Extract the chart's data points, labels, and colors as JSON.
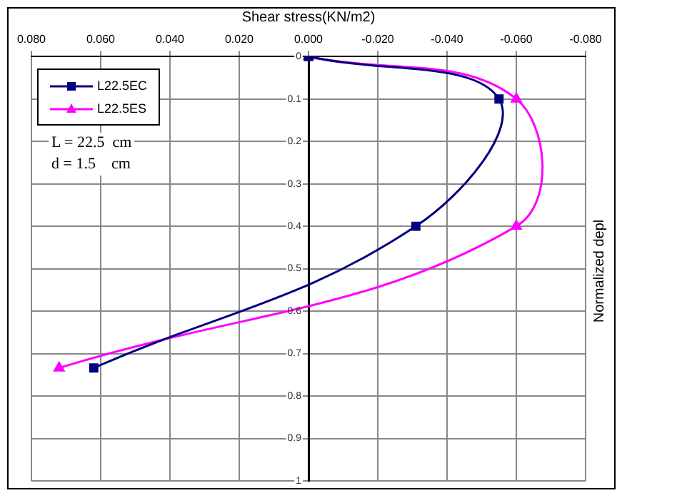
{
  "chart_data": {
    "type": "line",
    "xlabel": "Shear stress(KN/m2)",
    "ylabel": "Normalized depl",
    "xlim": [
      0.08,
      -0.08
    ],
    "xticks": [
      {
        "value": 0.08,
        "label": "0.080"
      },
      {
        "value": 0.06,
        "label": "0.060"
      },
      {
        "value": 0.04,
        "label": "0.040"
      },
      {
        "value": 0.02,
        "label": "0.020"
      },
      {
        "value": 0,
        "label": "0.000"
      },
      {
        "value": -0.02,
        "label": "-0.020"
      },
      {
        "value": -0.04,
        "label": "-0.040"
      },
      {
        "value": -0.06,
        "label": "-0.060"
      },
      {
        "value": -0.08,
        "label": "-0.080"
      }
    ],
    "ylim": [
      1,
      0
    ],
    "yticks": [
      0,
      0.1,
      0.2,
      0.3,
      0.4,
      0.5,
      0.6,
      0.7,
      0.8,
      0.9,
      1
    ],
    "grid": true,
    "legend": "top left",
    "series": [
      {
        "name": "L22.5EC",
        "color": "#000080",
        "marker": "square",
        "x": [
          0,
          -0.055,
          -0.031,
          0.062
        ],
        "values": [
          0,
          0.1,
          0.4,
          0.734
        ]
      },
      {
        "name": "L22.5ES",
        "color": "#ff00ff",
        "marker": "triangle",
        "x": [
          0,
          -0.06,
          -0.06,
          0.072
        ],
        "values": [
          0,
          0.1,
          0.4,
          0.734
        ]
      }
    ],
    "annotations": [
      "L = 22.5  cm",
      "d = 1.5    cm"
    ]
  }
}
